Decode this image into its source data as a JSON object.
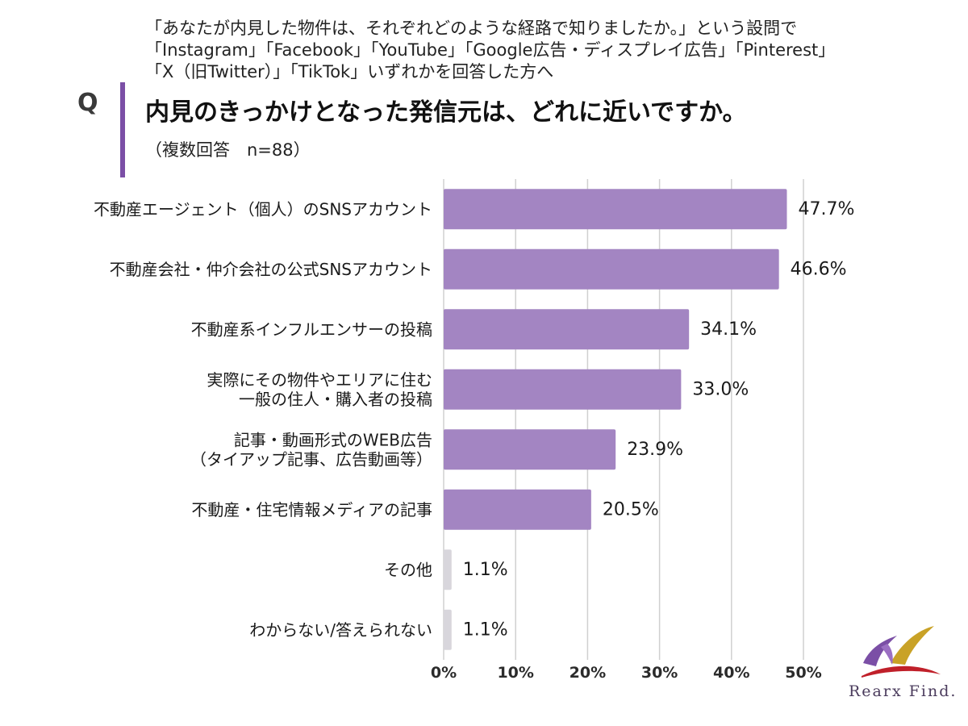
{
  "header": {
    "intro_lines": [
      "「あなたが内見した物件は、それぞれどのような経路で知りましたか。」という設問で",
      "「Instagram」「Facebook」「YouTube」「Google広告・ディスプレイ広告」「Pinterest」",
      "「X（旧Twitter）」「TikTok」いずれかを回答した方へ"
    ],
    "q_letter": "Q",
    "question": "内見のきっかけとなった発信元は、どれに近いですか。",
    "subtitle": "（複数回答　n=88）"
  },
  "chart_data": {
    "type": "bar",
    "orientation": "horizontal",
    "categories": [
      [
        "不動産エージェント（個人）のSNSアカウント"
      ],
      [
        "不動産会社・仲介会社の公式SNSアカウント"
      ],
      [
        "不動産系インフルエンサーの投稿"
      ],
      [
        "実際にその物件やエリアに住む",
        "一般の住人・購入者の投稿"
      ],
      [
        "記事・動画形式のWEB広告",
        "（タイアップ記事、広告動画等）"
      ],
      [
        "不動産・住宅情報メディアの記事"
      ],
      [
        "その他"
      ],
      [
        "わからない/答えられない"
      ]
    ],
    "values": [
      47.7,
      46.6,
      34.1,
      33.0,
      23.9,
      20.5,
      1.1,
      1.1
    ],
    "value_labels": [
      "47.7%",
      "46.6%",
      "34.1%",
      "33.0%",
      "23.9%",
      "20.5%",
      "1.1%",
      "1.1%"
    ],
    "xlim": [
      0,
      50
    ],
    "xticks": [
      0,
      10,
      20,
      30,
      40,
      50
    ],
    "xtick_labels": [
      "0%",
      "10%",
      "20%",
      "30%",
      "40%",
      "50%"
    ],
    "grid": true,
    "colors": {
      "bar": "#a385c2",
      "bar_minor": "#d8d6dc",
      "grid": "#d0d0d0",
      "accent": "#7b4fa6"
    }
  },
  "logo": {
    "text": "Rearx Find."
  }
}
